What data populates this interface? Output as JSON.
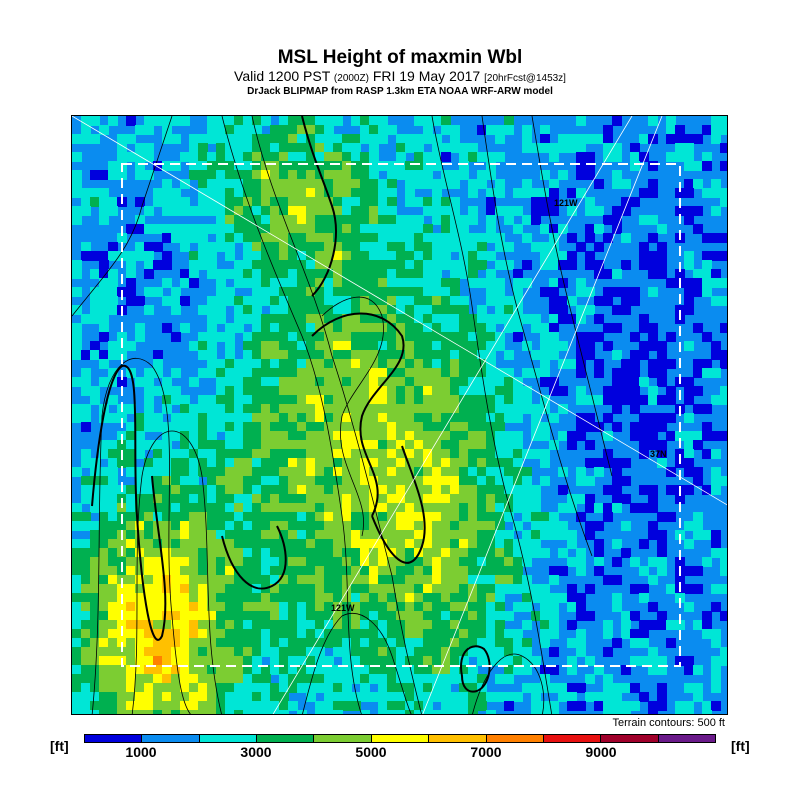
{
  "header": {
    "title": "MSL Height of maxmin Wbl",
    "subtitle_main": "Valid 1200 PST",
    "subtitle_zulu": "(2000Z)",
    "subtitle_date": "FRI 19 May 2017",
    "subtitle_fcst": "[20hrFcst@1453z]",
    "model_line": "DrJack BLIPMAP from RASP 1.3km ETA NOAA WRF-ARW model"
  },
  "map": {
    "labels": {
      "lon_top": "121W",
      "lon_bottom": "121W",
      "lat_right": "37N"
    },
    "terrain_note": "Terrain contours: 500 ft"
  },
  "legend": {
    "unit_left": "[ft]",
    "unit_right": "[ft]",
    "tick_labels": [
      "1000",
      "3000",
      "5000",
      "7000",
      "9000"
    ],
    "colors": [
      "#0000dd",
      "#0a8cf0",
      "#00e6d6",
      "#00b050",
      "#7ccd32",
      "#ffff00",
      "#ffc000",
      "#ff8000",
      "#e81010",
      "#a0002a",
      "#6a1a8a"
    ]
  }
}
